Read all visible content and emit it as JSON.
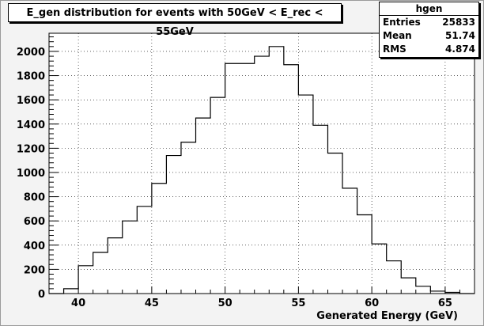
{
  "chart_data": {
    "type": "histogram",
    "title": "E_gen distribution for events with 50GeV < E_rec < 55GeV",
    "xlabel": "Generated Energy (GeV)",
    "ylabel": "",
    "xlim": [
      38,
      67
    ],
    "ylim": [
      0,
      2150
    ],
    "grid": true,
    "x_ticks": [
      "40",
      "45",
      "50",
      "55",
      "60",
      "65"
    ],
    "y_ticks": [
      "0",
      "200",
      "400",
      "600",
      "800",
      "1000",
      "1200",
      "1400",
      "1600",
      "1800",
      "2000"
    ],
    "bin_edges": [
      38,
      39,
      40,
      41,
      42,
      43,
      44,
      45,
      46,
      47,
      48,
      49,
      50,
      51,
      52,
      53,
      54,
      55,
      56,
      57,
      58,
      59,
      60,
      61,
      62,
      63,
      64,
      65,
      66,
      67
    ],
    "counts": [
      0,
      40,
      230,
      340,
      460,
      600,
      720,
      910,
      1140,
      1250,
      1450,
      1620,
      1900,
      1900,
      1960,
      2040,
      1890,
      1640,
      1390,
      1160,
      870,
      650,
      410,
      270,
      130,
      60,
      20,
      10,
      0
    ]
  },
  "stats": {
    "name": "hgen",
    "entries_label": "Entries",
    "entries": "25833",
    "mean_label": "Mean",
    "mean": "51.74",
    "rms_label": "RMS",
    "rms": "4.874"
  },
  "colors": {
    "frame_background": "#f3f3f3",
    "plot_background": "#ffffff",
    "line": "#000000",
    "grid": "#000000"
  }
}
